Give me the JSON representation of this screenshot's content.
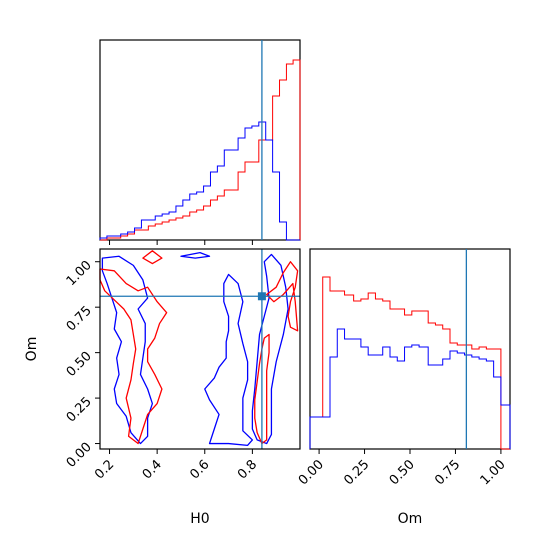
{
  "chart_data": {
    "type": "corner",
    "parameters": [
      "H0",
      "Om"
    ],
    "truth": {
      "H0": 0.84,
      "Om": 0.81
    },
    "colors": {
      "red_series": "#ff0000",
      "blue_series": "#0000ff",
      "truth": "#1f77b4"
    },
    "panels": [
      {
        "panel": "H0-marginal",
        "type": "histogram-step",
        "xlim": [
          0.16,
          1.0
        ],
        "bin_edges": [
          0.16,
          0.189,
          0.218,
          0.247,
          0.276,
          0.305,
          0.334,
          0.363,
          0.392,
          0.421,
          0.45,
          0.479,
          0.508,
          0.537,
          0.566,
          0.595,
          0.624,
          0.653,
          0.682,
          0.711,
          0.74,
          0.769,
          0.798,
          0.827,
          0.856,
          0.885,
          0.914,
          0.943,
          0.971,
          1.0
        ],
        "series": [
          {
            "color": "red",
            "values": [
              0.0,
              0.01,
              0.01,
              0.02,
              0.03,
              0.05,
              0.05,
              0.07,
              0.08,
              0.09,
              0.1,
              0.11,
              0.12,
              0.14,
              0.15,
              0.17,
              0.2,
              0.22,
              0.25,
              0.25,
              0.34,
              0.39,
              0.39,
              0.5,
              0.5,
              0.72,
              0.8,
              0.88,
              0.9
            ]
          },
          {
            "color": "blue",
            "values": [
              0.01,
              0.02,
              0.02,
              0.03,
              0.04,
              0.06,
              0.1,
              0.1,
              0.12,
              0.13,
              0.14,
              0.17,
              0.2,
              0.23,
              0.24,
              0.27,
              0.34,
              0.37,
              0.45,
              0.45,
              0.51,
              0.56,
              0.57,
              0.59,
              0.5,
              0.34,
              0.09,
              0.0,
              0.0
            ]
          }
        ]
      },
      {
        "panel": "Om-marginal",
        "type": "histogram-step",
        "xlim": [
          -0.05,
          1.05
        ],
        "bin_edges": [
          -0.05,
          0.02,
          0.06,
          0.1,
          0.14,
          0.19,
          0.23,
          0.27,
          0.31,
          0.35,
          0.39,
          0.43,
          0.47,
          0.51,
          0.55,
          0.6,
          0.64,
          0.68,
          0.72,
          0.76,
          0.8,
          0.84,
          0.88,
          0.92,
          0.96,
          1.0,
          1.05
        ],
        "series": [
          {
            "color": "red",
            "values": [
              0.16,
              0.86,
              0.79,
              0.79,
              0.77,
              0.74,
              0.75,
              0.78,
              0.75,
              0.74,
              0.7,
              0.7,
              0.67,
              0.69,
              0.69,
              0.63,
              0.62,
              0.6,
              0.53,
              0.52,
              0.52,
              0.5,
              0.51,
              0.5,
              0.5,
              0.0
            ]
          },
          {
            "color": "blue",
            "values": [
              0.16,
              0.16,
              0.46,
              0.6,
              0.55,
              0.55,
              0.51,
              0.47,
              0.47,
              0.51,
              0.46,
              0.44,
              0.51,
              0.52,
              0.51,
              0.42,
              0.42,
              0.45,
              0.49,
              0.48,
              0.47,
              0.46,
              0.45,
              0.44,
              0.36,
              0.22
            ]
          }
        ]
      },
      {
        "panel": "H0-Om-joint",
        "type": "contour",
        "xlim": [
          0.16,
          1.0
        ],
        "ylim": [
          -0.03,
          1.07
        ],
        "xlabel": "H0",
        "ylabel": "Om",
        "xticks": [
          0.2,
          0.4,
          0.6,
          0.8
        ],
        "yticks": [
          0.0,
          0.25,
          0.5,
          0.75,
          1.0
        ]
      }
    ],
    "contours": [
      {
        "color": "blue",
        "points": [
          [
            0.86,
            0.0
          ],
          [
            0.82,
            0.02
          ],
          [
            0.8,
            0.08
          ],
          [
            0.8,
            0.18
          ],
          [
            0.81,
            0.3
          ],
          [
            0.82,
            0.45
          ],
          [
            0.83,
            0.6
          ],
          [
            0.85,
            0.7
          ],
          [
            0.87,
            0.8
          ],
          [
            0.86,
            0.92
          ],
          [
            0.85,
            1.0
          ],
          [
            0.88,
            1.04
          ],
          [
            0.92,
            0.98
          ],
          [
            0.94,
            0.86
          ],
          [
            0.95,
            0.74
          ],
          [
            0.93,
            0.6
          ],
          [
            0.9,
            0.45
          ],
          [
            0.88,
            0.3
          ],
          [
            0.88,
            0.15
          ],
          [
            0.88,
            0.05
          ],
          [
            0.86,
            0.0
          ]
        ]
      },
      {
        "color": "blue",
        "points": [
          [
            0.62,
            0.0
          ],
          [
            0.64,
            0.08
          ],
          [
            0.66,
            0.16
          ],
          [
            0.62,
            0.24
          ],
          [
            0.6,
            0.3
          ],
          [
            0.64,
            0.36
          ],
          [
            0.66,
            0.42
          ],
          [
            0.69,
            0.47
          ],
          [
            0.69,
            0.56
          ],
          [
            0.7,
            0.62
          ],
          [
            0.7,
            0.7
          ],
          [
            0.68,
            0.78
          ],
          [
            0.68,
            0.88
          ],
          [
            0.7,
            0.93
          ],
          [
            0.74,
            0.88
          ],
          [
            0.76,
            0.78
          ],
          [
            0.74,
            0.66
          ],
          [
            0.76,
            0.55
          ],
          [
            0.78,
            0.45
          ],
          [
            0.78,
            0.35
          ],
          [
            0.76,
            0.25
          ],
          [
            0.76,
            0.15
          ],
          [
            0.76,
            0.07
          ],
          [
            0.8,
            0.02
          ],
          [
            0.78,
            -0.01
          ],
          [
            0.7,
            0.0
          ],
          [
            0.62,
            0.0
          ]
        ]
      },
      {
        "color": "blue",
        "points": [
          [
            0.17,
            1.02
          ],
          [
            0.24,
            1.03
          ],
          [
            0.3,
            0.98
          ],
          [
            0.34,
            0.9
          ],
          [
            0.36,
            0.8
          ],
          [
            0.32,
            0.74
          ],
          [
            0.35,
            0.66
          ],
          [
            0.35,
            0.56
          ],
          [
            0.34,
            0.47
          ],
          [
            0.33,
            0.38
          ],
          [
            0.36,
            0.3
          ],
          [
            0.38,
            0.22
          ],
          [
            0.36,
            0.14
          ],
          [
            0.36,
            0.04
          ],
          [
            0.33,
            0.0
          ],
          [
            0.29,
            0.06
          ],
          [
            0.27,
            0.15
          ],
          [
            0.23,
            0.22
          ],
          [
            0.22,
            0.3
          ],
          [
            0.24,
            0.38
          ],
          [
            0.23,
            0.47
          ],
          [
            0.25,
            0.56
          ],
          [
            0.22,
            0.63
          ],
          [
            0.23,
            0.72
          ],
          [
            0.21,
            0.8
          ],
          [
            0.19,
            0.88
          ],
          [
            0.17,
            0.95
          ],
          [
            0.17,
            1.02
          ]
        ]
      },
      {
        "color": "blue",
        "points": [
          [
            0.5,
            1.03
          ],
          [
            0.56,
            1.02
          ],
          [
            0.62,
            1.03
          ],
          [
            0.58,
            1.05
          ],
          [
            0.5,
            1.03
          ]
        ]
      },
      {
        "color": "red",
        "points": [
          [
            0.84,
            0.0
          ],
          [
            0.82,
            0.06
          ],
          [
            0.81,
            0.14
          ],
          [
            0.81,
            0.24
          ],
          [
            0.82,
            0.34
          ],
          [
            0.83,
            0.44
          ],
          [
            0.84,
            0.52
          ],
          [
            0.85,
            0.58
          ],
          [
            0.87,
            0.6
          ],
          [
            0.87,
            0.5
          ],
          [
            0.86,
            0.4
          ],
          [
            0.86,
            0.3
          ],
          [
            0.86,
            0.2
          ],
          [
            0.86,
            0.1
          ],
          [
            0.86,
            0.02
          ],
          [
            0.84,
            0.0
          ]
        ]
      },
      {
        "color": "red",
        "points": [
          [
            0.86,
            0.82
          ],
          [
            0.9,
            0.86
          ],
          [
            0.93,
            0.94
          ],
          [
            0.96,
            1.0
          ],
          [
            0.99,
            0.95
          ],
          [
            0.98,
            0.86
          ],
          [
            0.96,
            0.78
          ],
          [
            0.95,
            0.7
          ],
          [
            0.96,
            0.64
          ],
          [
            0.99,
            0.62
          ],
          [
            0.98,
            0.78
          ],
          [
            0.97,
            0.88
          ],
          [
            0.93,
            0.82
          ],
          [
            0.89,
            0.78
          ],
          [
            0.86,
            0.82
          ]
        ]
      },
      {
        "color": "red",
        "points": [
          [
            0.16,
            0.96
          ],
          [
            0.22,
            0.95
          ],
          [
            0.27,
            0.88
          ],
          [
            0.32,
            0.84
          ],
          [
            0.36,
            0.86
          ],
          [
            0.4,
            0.78
          ],
          [
            0.44,
            0.72
          ],
          [
            0.41,
            0.66
          ],
          [
            0.39,
            0.58
          ],
          [
            0.36,
            0.52
          ],
          [
            0.36,
            0.45
          ],
          [
            0.39,
            0.38
          ],
          [
            0.42,
            0.3
          ],
          [
            0.4,
            0.22
          ],
          [
            0.36,
            0.16
          ],
          [
            0.34,
            0.08
          ],
          [
            0.32,
            0.0
          ],
          [
            0.28,
            0.04
          ],
          [
            0.29,
            0.14
          ],
          [
            0.27,
            0.25
          ],
          [
            0.29,
            0.35
          ],
          [
            0.3,
            0.44
          ],
          [
            0.31,
            0.52
          ],
          [
            0.3,
            0.6
          ],
          [
            0.29,
            0.68
          ],
          [
            0.26,
            0.74
          ],
          [
            0.22,
            0.79
          ],
          [
            0.18,
            0.84
          ],
          [
            0.16,
            0.9
          ],
          [
            0.16,
            0.96
          ]
        ]
      },
      {
        "color": "red",
        "points": [
          [
            0.34,
            1.02
          ],
          [
            0.38,
            1.06
          ],
          [
            0.42,
            1.02
          ],
          [
            0.38,
            0.99
          ],
          [
            0.34,
            1.02
          ]
        ]
      }
    ]
  }
}
